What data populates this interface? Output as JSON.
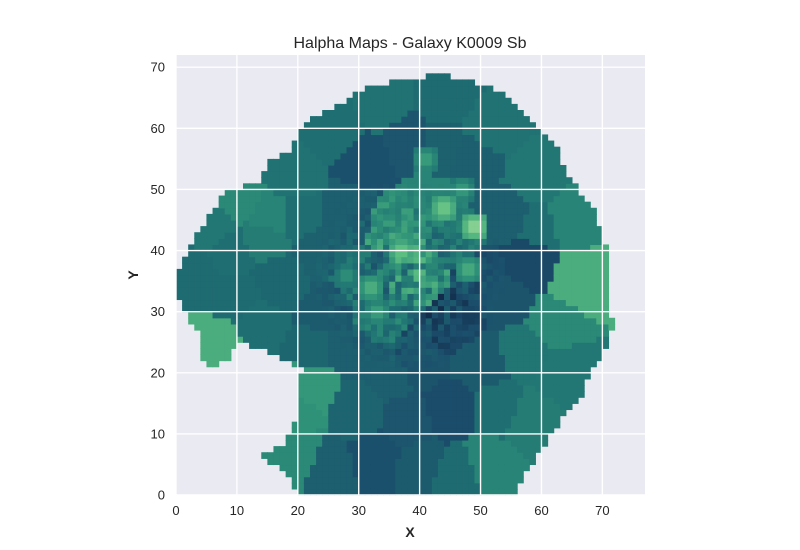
{
  "chart_data": {
    "type": "heatmap",
    "title": "Halpha Maps - Galaxy K0009 Sb",
    "xlabel": "X",
    "ylabel": "Y",
    "xlim": [
      0,
      77
    ],
    "ylim": [
      0,
      72
    ],
    "xticks": [
      0,
      10,
      20,
      30,
      40,
      50,
      60,
      70
    ],
    "yticks": [
      0,
      10,
      20,
      30,
      40,
      50,
      60,
      70
    ],
    "grid": true,
    "colormap": "teal-green sequential (dark navy to light green)",
    "colors": {
      "background": "#eaeaf2",
      "grid": "#ffffff",
      "cmap_low": "#0f2140",
      "cmap_mid_dark": "#1b4d6b",
      "cmap_mid": "#1e6e72",
      "cmap_mid_light": "#2f9278",
      "cmap_high": "#5ebf82",
      "cmap_peak": "#d4efb0"
    }
  }
}
